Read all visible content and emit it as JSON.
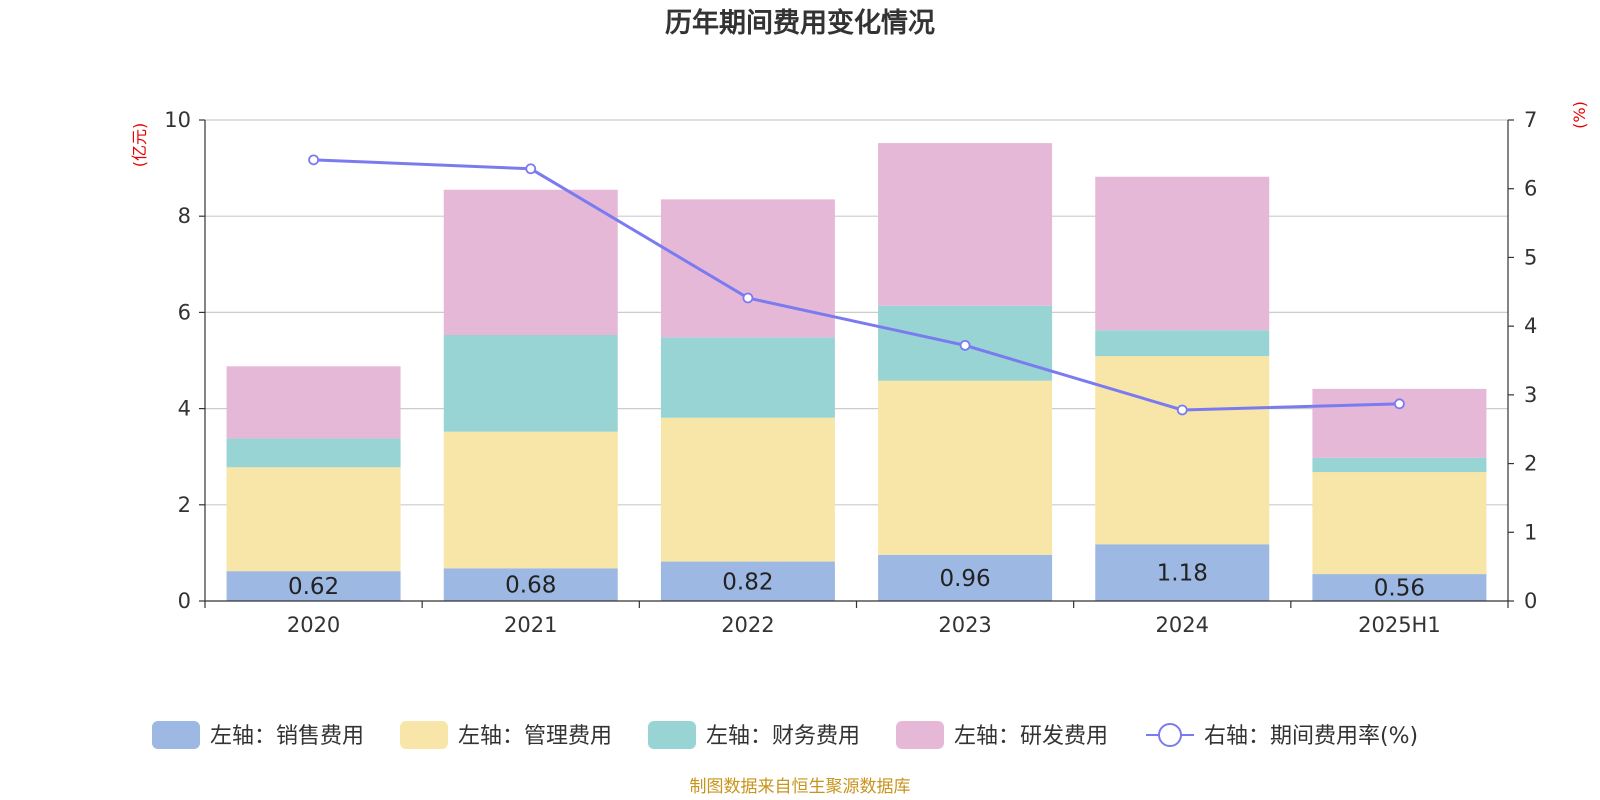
{
  "chart_data": {
    "type": "bar",
    "stacked": true,
    "title": "历年期间费用变化情况",
    "categories": [
      "2020",
      "2021",
      "2022",
      "2023",
      "2024",
      "2025H1"
    ],
    "y_left": {
      "unit": "(亿元)",
      "ylim": [
        0,
        10
      ],
      "ticks": [
        "0",
        "2",
        "4",
        "6",
        "8",
        "10"
      ]
    },
    "y_right": {
      "unit": "(%)",
      "ylim": [
        0,
        7
      ],
      "ticks": [
        "0",
        "1",
        "2",
        "3",
        "4",
        "5",
        "6",
        "7"
      ]
    },
    "series": [
      {
        "name": "左轴：销售费用",
        "type": "bar",
        "axis": "left",
        "color": "#9db8e2",
        "values": [
          0.62,
          0.68,
          0.82,
          0.96,
          1.18,
          0.56
        ],
        "labels": [
          "0.62",
          "0.68",
          "0.82",
          "0.96",
          "1.18",
          "0.56"
        ]
      },
      {
        "name": "左轴：管理费用",
        "type": "bar",
        "axis": "left",
        "color": "#f7e6a7",
        "values": [
          2.16,
          2.84,
          2.99,
          3.62,
          3.91,
          2.12
        ]
      },
      {
        "name": "左轴：财务费用",
        "type": "bar",
        "axis": "left",
        "color": "#98d4d4",
        "values": [
          0.6,
          2.01,
          1.67,
          1.56,
          0.54,
          0.3
        ]
      },
      {
        "name": "左轴：研发费用",
        "type": "bar",
        "axis": "left",
        "color": "#e6b8d8",
        "values": [
          1.5,
          3.02,
          2.87,
          3.38,
          3.19,
          1.43
        ]
      },
      {
        "name": "右轴：期间费用率(%)",
        "type": "line",
        "axis": "right",
        "color": "#7b7bf0",
        "values": [
          6.42,
          6.29,
          4.41,
          3.72,
          2.78,
          2.87
        ]
      }
    ],
    "grid": true,
    "legend_position": "bottom"
  },
  "footer": {
    "source": "制图数据来自恒生聚源数据库"
  }
}
